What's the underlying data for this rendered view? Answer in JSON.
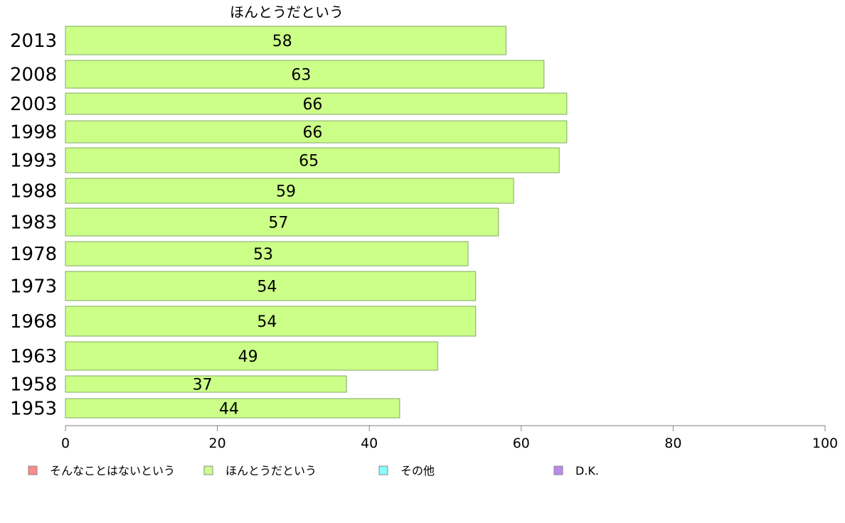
{
  "chart_data": {
    "type": "bar",
    "orientation": "horizontal",
    "header_label": "ほんとうだという",
    "categories": [
      "2013",
      "2008",
      "2003",
      "1998",
      "1993",
      "1988",
      "1983",
      "1978",
      "1973",
      "1968",
      "1963",
      "1958",
      "1953"
    ],
    "series": [
      {
        "name": "ほんとうだという",
        "color": "#ccff88",
        "values": [
          58,
          63,
          66,
          66,
          65,
          59,
          57,
          53,
          54,
          54,
          49,
          37,
          44
        ]
      }
    ],
    "xlim": [
      0,
      100
    ],
    "x_ticks": [
      0,
      20,
      40,
      60,
      80,
      100
    ],
    "legend": {
      "placement": "bottom",
      "entries": [
        {
          "label": "そんなことはないという",
          "color": "#ff8888"
        },
        {
          "label": "ほんとうだという",
          "color": "#ccff88"
        },
        {
          "label": "その他",
          "color": "#88ffff"
        },
        {
          "label": "D.K.",
          "color": "#bb88ee"
        }
      ]
    }
  }
}
